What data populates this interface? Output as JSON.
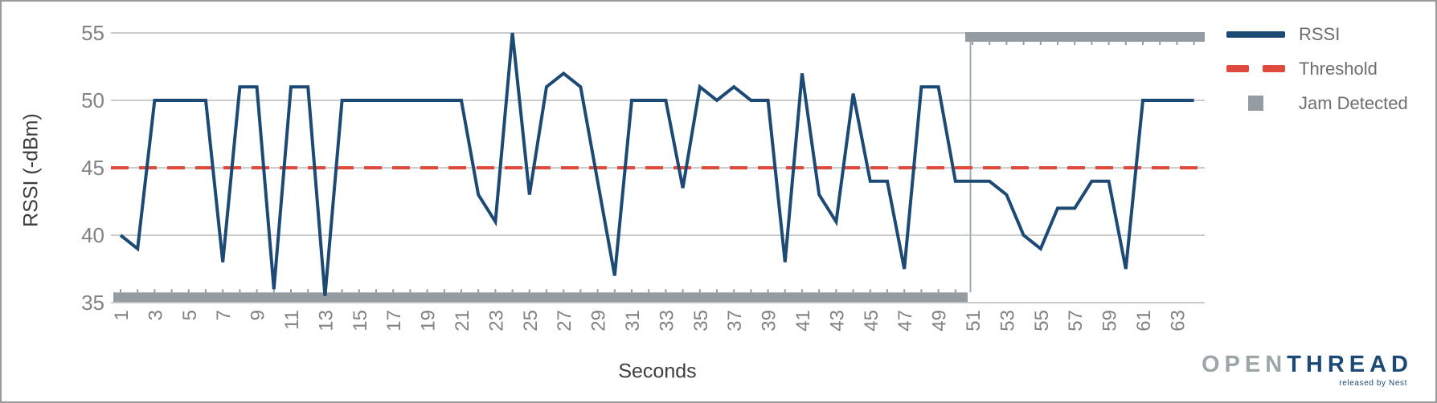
{
  "chart_data": {
    "type": "line",
    "title": "",
    "xlabel": "Seconds",
    "ylabel": "RSSI (-dBm)",
    "x_start": 1,
    "x_step": 1,
    "x_count": 64,
    "x_tick_labels": [
      "1",
      "3",
      "5",
      "7",
      "9",
      "11",
      "13",
      "15",
      "17",
      "19",
      "21",
      "23",
      "25",
      "27",
      "29",
      "31",
      "33",
      "35",
      "37",
      "39",
      "41",
      "43",
      "45",
      "47",
      "49",
      "51",
      "53",
      "55",
      "57",
      "59",
      "61",
      "63"
    ],
    "ylim": [
      35,
      55
    ],
    "y_ticks": [
      35,
      40,
      45,
      50,
      55
    ],
    "grid": "horizontal",
    "legend_position": "right",
    "series": [
      {
        "name": "RSSI",
        "type": "line",
        "color": "#1c4a75",
        "values": [
          40,
          39,
          50,
          50,
          50,
          50,
          38,
          51,
          51,
          36,
          51,
          51,
          35.5,
          50,
          50,
          50,
          50,
          50,
          50,
          50,
          50,
          43,
          41,
          55,
          43,
          51,
          52,
          51,
          44,
          37,
          50,
          50,
          50,
          43.5,
          51,
          50,
          51,
          50,
          50,
          38,
          52,
          43,
          41,
          50.5,
          44,
          44,
          37.5,
          51,
          51,
          44,
          44,
          44,
          43,
          40,
          39,
          42,
          42,
          44,
          44,
          37.5,
          50,
          50,
          50,
          50
        ]
      },
      {
        "name": "Threshold",
        "type": "dashed-line",
        "color": "#de4a3c",
        "value": 45
      },
      {
        "name": "Jam Detected",
        "type": "step",
        "color": "#949ca2",
        "low_value": 35.4,
        "high_value": 54.7,
        "transition_second": 51,
        "description": "gray bar at ~35.4 dBm for seconds 1-50, jumps to ~54.7 dBm from second 51 to end"
      }
    ]
  },
  "legend": {
    "items": [
      "RSSI",
      "Threshold",
      "Jam Detected"
    ]
  },
  "logo": {
    "part1": "OPEN",
    "part2": "THREAD",
    "tagline": "released by Nest"
  },
  "colors": {
    "rssi_line": "#1c4a75",
    "threshold": "#de4a3c",
    "jam": "#949ca2",
    "jam_connector": "#a2aaaf",
    "grid_line": "#cccccc",
    "tick_label": "#828282",
    "axis_title": "#3d3d3d",
    "legend_text": "#6e6e6e",
    "logo_gray": "#9ea5a8",
    "logo_navy": "#1c4a75",
    "frame_border": "#9a9a9a"
  }
}
